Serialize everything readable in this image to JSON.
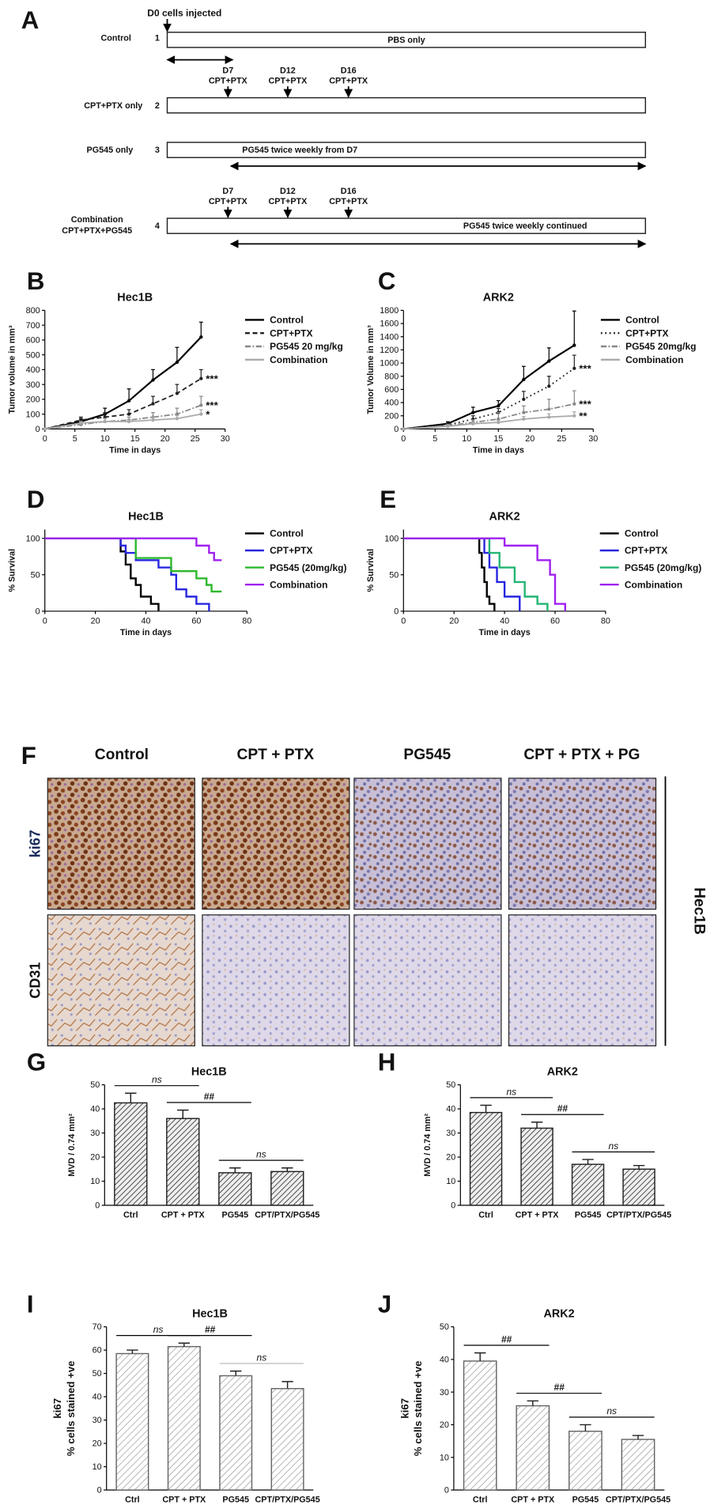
{
  "panel_a": {
    "label": "A",
    "injection": "D0 cells injected",
    "groups": [
      {
        "name": "Control",
        "number": "1",
        "bar_text": "PBS only"
      },
      {
        "name": "CPT+PTX only",
        "number": "2",
        "doses": [
          {
            "day": "D7",
            "drug": "CPT+PTX"
          },
          {
            "day": "D12",
            "drug": "CPT+PTX"
          },
          {
            "day": "D16",
            "drug": "CPT+PTX"
          }
        ]
      },
      {
        "name": "PG545 only",
        "number": "3",
        "bar_text": "PG545 twice weekly from D7"
      },
      {
        "name_lines": [
          "Combination",
          "CPT+PTX+PG545"
        ],
        "number": "4",
        "bar_text": "PG545 twice weekly continued",
        "doses": [
          {
            "day": "D7",
            "drug": "CPT+PTX"
          },
          {
            "day": "D12",
            "drug": "CPT+PTX"
          },
          {
            "day": "D16",
            "drug": "CPT+PTX"
          }
        ]
      }
    ]
  },
  "panel_f": {
    "label": "F",
    "columns": [
      "Control",
      "CPT + PTX",
      "PG545",
      "CPT + PTX + PG"
    ],
    "rows": [
      "ki67",
      "CD31"
    ],
    "side_label": "Hec1B"
  },
  "chart_data": [
    {
      "type": "line",
      "label": "B",
      "title": "Hec1B",
      "x_label": "Time in days",
      "y_label": "Tumor volume in mm³",
      "x": [
        0,
        6,
        10,
        14,
        18,
        22,
        26
      ],
      "xlim": [
        0,
        30
      ],
      "xticks": [
        0,
        5,
        10,
        15,
        20,
        25,
        30
      ],
      "ylim": [
        0,
        800
      ],
      "yticks": [
        0,
        100,
        200,
        300,
        400,
        500,
        600,
        700,
        800
      ],
      "series": [
        {
          "name": "Control",
          "color": "#000000",
          "line_style": "solid",
          "values": [
            0,
            50,
            100,
            190,
            330,
            450,
            620
          ],
          "errors": [
            0,
            20,
            40,
            80,
            70,
            100,
            100
          ]
        },
        {
          "name": "CPT+PTX",
          "color": "#222222",
          "line_style": "dashed",
          "values": [
            0,
            60,
            80,
            100,
            170,
            240,
            340
          ],
          "errors": [
            0,
            20,
            30,
            30,
            50,
            60,
            60
          ],
          "significance": "***"
        },
        {
          "name": "PG545 20 mg/kg",
          "color": "#888888",
          "line_style": "dashdot",
          "values": [
            0,
            30,
            50,
            60,
            80,
            100,
            160
          ],
          "errors": [
            0,
            10,
            20,
            20,
            30,
            40,
            60
          ],
          "significance": "***"
        },
        {
          "name": "Combination",
          "color": "#aaaaaa",
          "line_style": "solid",
          "values": [
            0,
            40,
            50,
            50,
            60,
            70,
            100
          ],
          "errors": [
            0,
            10,
            20,
            15,
            20,
            20,
            30
          ],
          "significance": "*"
        }
      ]
    },
    {
      "type": "line",
      "label": "C",
      "title": "ARK2",
      "x_label": "Time in days",
      "y_label": "Tumor Volume in mm³",
      "x": [
        0,
        7,
        11,
        15,
        19,
        23,
        27
      ],
      "xlim": [
        0,
        30
      ],
      "xticks": [
        0,
        5,
        10,
        15,
        20,
        25,
        30
      ],
      "ylim": [
        0,
        1800
      ],
      "yticks": [
        0,
        200,
        400,
        600,
        800,
        1000,
        1200,
        1400,
        1600,
        1800
      ],
      "series": [
        {
          "name": "Control",
          "color": "#000000",
          "line_style": "solid",
          "values": [
            0,
            80,
            250,
            350,
            750,
            1030,
            1270
          ],
          "errors": [
            0,
            30,
            80,
            80,
            200,
            200,
            520
          ]
        },
        {
          "name": "CPT+PTX",
          "color": "#222222",
          "line_style": "dotted",
          "values": [
            0,
            60,
            150,
            250,
            450,
            650,
            920
          ],
          "errors": [
            0,
            20,
            50,
            60,
            120,
            150,
            200
          ],
          "significance": "***"
        },
        {
          "name": "PG545 20mg/kg",
          "color": "#888888",
          "line_style": "dashdot",
          "values": [
            0,
            50,
            100,
            150,
            250,
            300,
            380
          ],
          "errors": [
            0,
            20,
            40,
            100,
            100,
            150,
            200
          ],
          "significance": "***"
        },
        {
          "name": "Combination",
          "color": "#aaaaaa",
          "line_style": "solid",
          "values": [
            0,
            40,
            80,
            100,
            150,
            180,
            200
          ],
          "errors": [
            0,
            10,
            20,
            30,
            40,
            50,
            60
          ],
          "significance": "**"
        }
      ]
    },
    {
      "type": "line",
      "step": true,
      "label": "D",
      "title": "Hec1B",
      "x_label": "Time in days",
      "y_label": "% Survival",
      "xlim": [
        0,
        80
      ],
      "xticks": [
        0,
        20,
        40,
        60,
        80
      ],
      "ylim": [
        0,
        112
      ],
      "yticks": [
        0,
        50,
        100
      ],
      "series": [
        {
          "name": "Control",
          "color": "#000000",
          "x": [
            0,
            30,
            32,
            34,
            36,
            38,
            42,
            45
          ],
          "values": [
            100,
            82,
            64,
            45,
            36,
            20,
            10,
            0
          ]
        },
        {
          "name": "CPT+PTX",
          "color": "#2626e0",
          "x": [
            0,
            30,
            32,
            36,
            45,
            50,
            52,
            56,
            60,
            65
          ],
          "values": [
            100,
            90,
            80,
            70,
            60,
            50,
            30,
            20,
            10,
            0
          ]
        },
        {
          "name": "PG545 (20mg/kg)",
          "color": "#2eb82e",
          "x": [
            0,
            36,
            50,
            60,
            64,
            66,
            70
          ],
          "values": [
            100,
            73,
            55,
            45,
            36,
            27,
            27
          ]
        },
        {
          "name": "Combination",
          "color": "#a020f0",
          "x": [
            0,
            60,
            65,
            67,
            70
          ],
          "values": [
            100,
            90,
            80,
            70,
            70
          ]
        }
      ]
    },
    {
      "type": "line",
      "step": true,
      "label": "E",
      "title": "ARK2",
      "x_label": "Time in days",
      "y_label": "% Survival",
      "xlim": [
        0,
        80
      ],
      "xticks": [
        0,
        20,
        40,
        60,
        80
      ],
      "ylim": [
        0,
        112
      ],
      "yticks": [
        0,
        50,
        100
      ],
      "series": [
        {
          "name": "Control",
          "color": "#000000",
          "x": [
            0,
            30,
            31,
            32,
            33,
            34,
            36
          ],
          "values": [
            100,
            80,
            60,
            40,
            20,
            10,
            0
          ]
        },
        {
          "name": "CPT+PTX",
          "color": "#2626e0",
          "x": [
            0,
            32,
            34,
            37,
            40,
            46
          ],
          "values": [
            100,
            80,
            60,
            40,
            20,
            0
          ]
        },
        {
          "name": "PG545 (20mg/kg)",
          "color": "#22b573",
          "x": [
            0,
            34,
            38,
            44,
            48,
            53,
            57
          ],
          "values": [
            100,
            80,
            60,
            40,
            20,
            10,
            0
          ]
        },
        {
          "name": "Combination",
          "color": "#a020f0",
          "x": [
            0,
            40,
            53,
            58,
            60,
            64
          ],
          "values": [
            100,
            90,
            70,
            50,
            10,
            0
          ]
        }
      ]
    },
    {
      "type": "bar",
      "label": "G",
      "title": "Hec1B",
      "y_label": "MVD / 0.74 mm²",
      "hatch": "dense",
      "categories": [
        "Ctrl",
        "CPT + PTX",
        "PG545",
        "CPT/PTX/PG545"
      ],
      "values": [
        42.5,
        36,
        13.5,
        14
      ],
      "errors": [
        4,
        3.5,
        2,
        1.5
      ],
      "ylim": [
        0,
        50
      ],
      "yticks": [
        0,
        10,
        20,
        30,
        40,
        50
      ],
      "comparisons": [
        {
          "between": [
            "Ctrl",
            "CPT + PTX"
          ],
          "text": "ns"
        },
        {
          "between": [
            "CPT + PTX",
            "PG545"
          ],
          "text": "##"
        },
        {
          "between": [
            "PG545",
            "CPT/PTX/PG545"
          ],
          "text": "ns"
        }
      ]
    },
    {
      "type": "bar",
      "label": "H",
      "title": "ARK2",
      "y_label": "MVD / 0.74 mm²",
      "hatch": "dense",
      "categories": [
        "Ctrl",
        "CPT + PTX",
        "PG545",
        "CPT/PTX/PG545"
      ],
      "values": [
        38.5,
        32,
        17,
        15
      ],
      "errors": [
        3,
        2.5,
        2,
        1.5
      ],
      "ylim": [
        0,
        50
      ],
      "yticks": [
        0,
        10,
        20,
        30,
        40,
        50
      ],
      "comparisons": [
        {
          "between": [
            "Ctrl",
            "CPT + PTX"
          ],
          "text": "ns"
        },
        {
          "between": [
            "CPT + PTX",
            "PG545"
          ],
          "text": "##"
        },
        {
          "between": [
            "PG545",
            "CPT/PTX/PG545"
          ],
          "text": "ns"
        }
      ]
    },
    {
      "type": "bar",
      "label": "I",
      "title": "Hec1B",
      "y_label_lines": [
        "ki67",
        "% cells stained +ve"
      ],
      "hatch": "light",
      "categories": [
        "Ctrl",
        "CPT + PTX",
        "PG545",
        "CPT/PTX/PG545"
      ],
      "values": [
        58.5,
        61.5,
        49,
        43.5
      ],
      "errors": [
        1.5,
        1.5,
        2,
        3
      ],
      "ylim": [
        0,
        70
      ],
      "yticks": [
        0,
        10,
        20,
        30,
        40,
        50,
        60,
        70
      ],
      "comparisons": [
        {
          "between": [
            "Ctrl",
            "CPT + PTX"
          ],
          "text": "ns"
        },
        {
          "between": [
            "CPT + PTX",
            "PG545"
          ],
          "text": "##"
        },
        {
          "between": [
            "PG545",
            "CPT/PTX/PG545"
          ],
          "text": "ns",
          "color": "#bbbbbb"
        }
      ]
    },
    {
      "type": "bar",
      "label": "J",
      "title": "ARK2",
      "y_label_lines": [
        "ki67",
        "% cells stained +ve"
      ],
      "hatch": "light",
      "categories": [
        "Ctrl",
        "CPT + PTX",
        "PG545",
        "CPT/PTX/PG545"
      ],
      "values": [
        39.5,
        25.8,
        18,
        15.5
      ],
      "errors": [
        2.5,
        1.5,
        2,
        1.2
      ],
      "ylim": [
        0,
        50
      ],
      "yticks": [
        0,
        10,
        20,
        30,
        40,
        50
      ],
      "comparisons": [
        {
          "between": [
            "Ctrl",
            "CPT + PTX"
          ],
          "text": "##"
        },
        {
          "between": [
            "CPT + PTX",
            "PG545"
          ],
          "text": "##"
        },
        {
          "between": [
            "PG545",
            "CPT/PTX/PG545"
          ],
          "text": "ns"
        }
      ]
    }
  ]
}
